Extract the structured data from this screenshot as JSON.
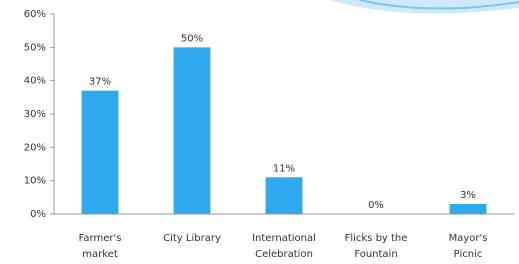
{
  "chart_data": {
    "type": "bar",
    "categories": [
      [
        "Farmer's",
        "market"
      ],
      [
        "City Library"
      ],
      [
        "International",
        "Celebration"
      ],
      [
        "Flicks by the",
        "Fountain"
      ],
      [
        "Mayor's",
        "Picnic"
      ]
    ],
    "values": [
      37,
      50,
      11,
      0,
      3
    ],
    "value_labels": [
      "37%",
      "50%",
      "11%",
      "0%",
      "3%"
    ],
    "color": "#2fa9ee",
    "ylim": [
      0,
      60
    ],
    "yticks": [
      {
        "value": 0,
        "label": "0%"
      },
      {
        "value": 10,
        "label": "10%"
      },
      {
        "value": 20,
        "label": "20%"
      },
      {
        "value": 30,
        "label": "30%"
      },
      {
        "value": 40,
        "label": "40%"
      },
      {
        "value": 50,
        "label": "50%"
      },
      {
        "value": 60,
        "label": "60%"
      }
    ],
    "grid": false
  }
}
